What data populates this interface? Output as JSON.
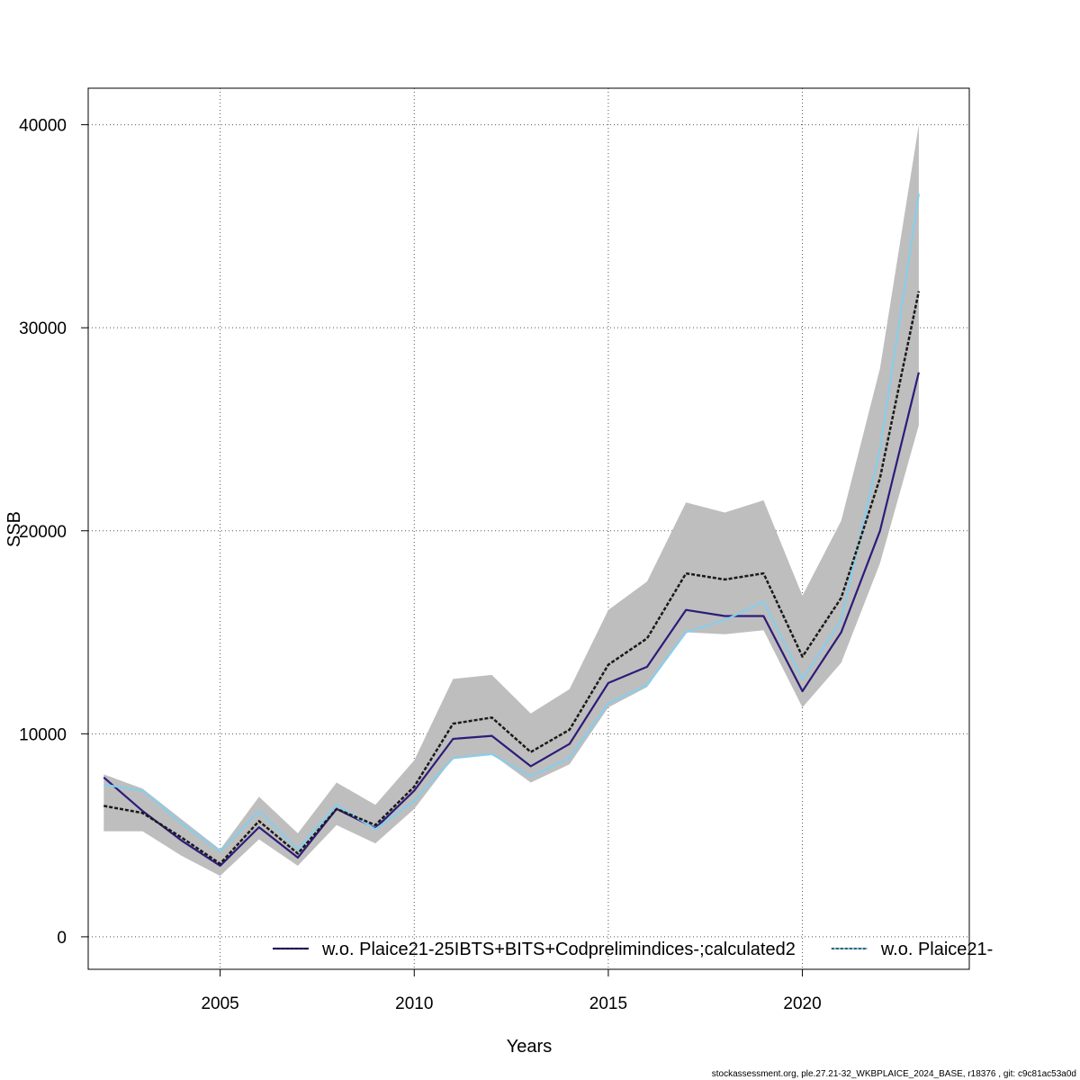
{
  "chart_data": {
    "type": "line",
    "title": "",
    "xlabel": "Years",
    "ylabel": "SSB",
    "xlim": [
      2001.6,
      2024.3
    ],
    "ylim": [
      -1600,
      41800
    ],
    "x_ticks": [
      2005,
      2010,
      2015,
      2020
    ],
    "y_ticks": [
      0,
      10000,
      20000,
      30000,
      40000
    ],
    "grid": true,
    "legend_position": "bottom",
    "x": [
      2002,
      2003,
      2004,
      2005,
      2006,
      2007,
      2008,
      2009,
      2010,
      2011,
      2012,
      2013,
      2014,
      2015,
      2016,
      2017,
      2018,
      2019,
      2020,
      2021,
      2022,
      2023
    ],
    "confidence_band": {
      "lower": [
        5200,
        5200,
        4000,
        3000,
        4800,
        3500,
        5500,
        4600,
        6300,
        8800,
        9000,
        7600,
        8500,
        11300,
        12300,
        15000,
        14900,
        15100,
        11300,
        13500,
        18400,
        25200
      ],
      "upper": [
        8000,
        7300,
        5800,
        4300,
        6900,
        5100,
        7600,
        6500,
        8700,
        12700,
        12900,
        11000,
        12200,
        16100,
        17500,
        21400,
        20900,
        21500,
        16800,
        20500,
        28000,
        40000
      ]
    },
    "series": [
      {
        "name": "w.o. Plaice21-25IBTS+BITS+Codprelimindices-;calculated2",
        "color": "#2d1b7a",
        "dashed": false,
        "values": [
          7850,
          6200,
          4750,
          3500,
          5400,
          3900,
          6300,
          5350,
          7200,
          9750,
          9900,
          8400,
          9500,
          12500,
          13300,
          16100,
          15800,
          15800,
          12100,
          15000,
          20000,
          27800
        ]
      },
      {
        "name": "w.o. Plaice21-",
        "color": "#87ceeb",
        "dashed": false,
        "values": [
          7500,
          7200,
          5600,
          4200,
          6200,
          4300,
          6500,
          5300,
          6700,
          8800,
          9000,
          7900,
          8800,
          11500,
          12400,
          15000,
          15600,
          16500,
          12700,
          15600,
          24000,
          36600
        ]
      },
      {
        "name": "",
        "color": "#1a1a1a",
        "dashed": true,
        "values": [
          6450,
          6100,
          4900,
          3600,
          5700,
          4100,
          6300,
          5500,
          7400,
          10500,
          10800,
          9100,
          10200,
          13400,
          14700,
          17900,
          17600,
          17900,
          13800,
          16700,
          22600,
          31800
        ]
      }
    ],
    "colors": {
      "band": "#bebebe",
      "grid": "#555555"
    }
  },
  "footer": "stockassessment.org, ple.27.21-32_WKBPLAICE_2024_BASE, r18376 , git: c9c81ac53a0d"
}
